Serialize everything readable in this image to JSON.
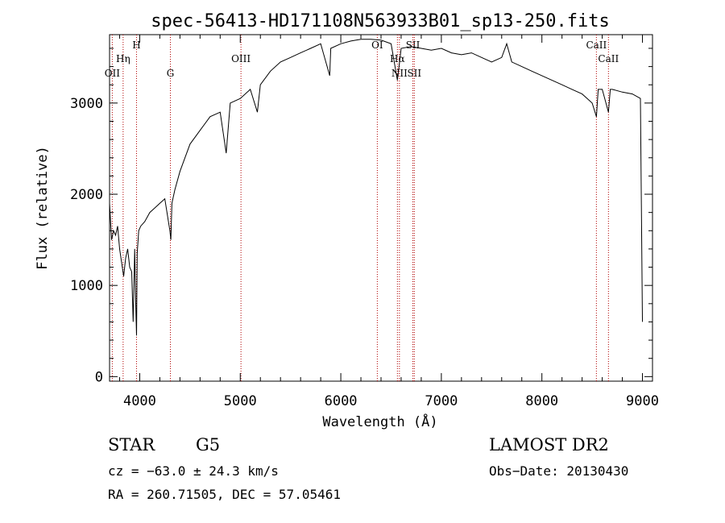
{
  "chart_data": {
    "type": "line",
    "title": "spec-56413-HD171108N563933B01_sp13-250.fits",
    "xlabel": "Wavelength (Å)",
    "ylabel": "Flux (relative)",
    "xlim": [
      3700,
      9100
    ],
    "ylim": [
      -50,
      3750
    ],
    "x_ticks": [
      4000,
      5000,
      6000,
      7000,
      8000,
      9000
    ],
    "y_ticks": [
      0,
      1000,
      2000,
      3000
    ],
    "grid": false,
    "series": [
      {
        "x": [
          3700,
          3720,
          3740,
          3760,
          3780,
          3800,
          3820,
          3840,
          3860,
          3880,
          3900,
          3920,
          3935,
          3950,
          3960,
          3968,
          3975,
          3990,
          4010,
          4050,
          4100,
          4150,
          4200,
          4250,
          4300,
          4310,
          4320,
          4350,
          4400,
          4450,
          4500,
          4600,
          4700,
          4800,
          4860,
          4900,
          5000,
          5100,
          5170,
          5200,
          5300,
          5400,
          5500,
          5600,
          5700,
          5800,
          5890,
          5900,
          6000,
          6100,
          6200,
          6300,
          6400,
          6500,
          6563,
          6600,
          6700,
          6800,
          6900,
          7000,
          7100,
          7200,
          7300,
          7400,
          7500,
          7600,
          7650,
          7700,
          7800,
          7900,
          8000,
          8100,
          8200,
          8300,
          8400,
          8450,
          8500,
          8542,
          8560,
          8600,
          8662,
          8680,
          8700,
          8800,
          8900,
          8980,
          9000
        ],
        "y": [
          1900,
          1500,
          1600,
          1550,
          1650,
          1400,
          1250,
          1100,
          1300,
          1400,
          1200,
          1150,
          600,
          1400,
          800,
          450,
          1350,
          1600,
          1650,
          1700,
          1800,
          1850,
          1900,
          1950,
          1600,
          1500,
          1900,
          2050,
          2250,
          2400,
          2550,
          2700,
          2850,
          2900,
          2450,
          3000,
          3050,
          3150,
          2900,
          3200,
          3350,
          3450,
          3500,
          3550,
          3600,
          3650,
          3300,
          3600,
          3650,
          3680,
          3700,
          3700,
          3690,
          3650,
          3250,
          3600,
          3620,
          3600,
          3580,
          3600,
          3550,
          3530,
          3550,
          3500,
          3450,
          3500,
          3650,
          3450,
          3400,
          3350,
          3300,
          3250,
          3200,
          3150,
          3100,
          3050,
          3000,
          2850,
          3150,
          3150,
          2900,
          3150,
          3150,
          3120,
          3100,
          3050,
          600
        ]
      }
    ],
    "lines": [
      {
        "label": "OII",
        "wavelength": 3727
      },
      {
        "label": "Hη",
        "wavelength": 3835
      },
      {
        "label": "H",
        "wavelength": 3968
      },
      {
        "label": "G",
        "wavelength": 4305
      },
      {
        "label": "OIII",
        "wavelength": 5007
      },
      {
        "label": "OI",
        "wavelength": 6363
      },
      {
        "label": "Hα",
        "wavelength": 6563
      },
      {
        "label": "NII",
        "wavelength": 6583
      },
      {
        "label": "SII",
        "wavelength": 6717
      },
      {
        "label": "SII",
        "wavelength": 6731
      },
      {
        "label": "CaII",
        "wavelength": 8542
      },
      {
        "label": "CaII",
        "wavelength": 8662
      }
    ]
  },
  "info": {
    "class_label": "STAR",
    "subclass_label": "G5",
    "survey": "LAMOST DR2",
    "cz": "cz = −63.0 ± 24.3 km/s",
    "obs_date": "Obs−Date: 20130430",
    "coords": "RA = 260.71505, DEC =  57.05461"
  }
}
